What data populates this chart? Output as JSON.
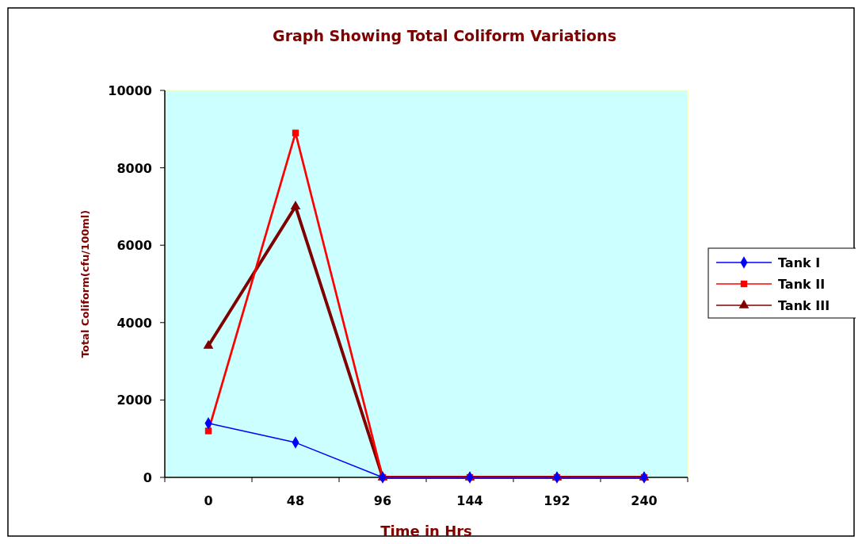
{
  "chart_data": {
    "type": "line",
    "title": "Graph Showing Total Coliform Variations",
    "xlabel": "Time in Hrs",
    "ylabel": "Total Coliform(cfu/100ml)",
    "categories": [
      "0",
      "48",
      "96",
      "144",
      "192",
      "240"
    ],
    "ylim": [
      0,
      10000
    ],
    "yticks": [
      0,
      2000,
      4000,
      6000,
      8000,
      10000
    ],
    "grid": false,
    "legend": "right",
    "series": [
      {
        "name": "Tank I",
        "color": "#0000ff",
        "marker": "diamond",
        "values": [
          1400,
          900,
          0,
          0,
          0,
          0
        ]
      },
      {
        "name": "Tank II",
        "color": "#ff0000",
        "marker": "square",
        "values": [
          1200,
          8900,
          0,
          0,
          0,
          0
        ]
      },
      {
        "name": "Tank III",
        "color": "#800000",
        "marker": "triangle",
        "values": [
          3400,
          7000,
          0,
          0,
          0,
          0
        ]
      }
    ]
  }
}
